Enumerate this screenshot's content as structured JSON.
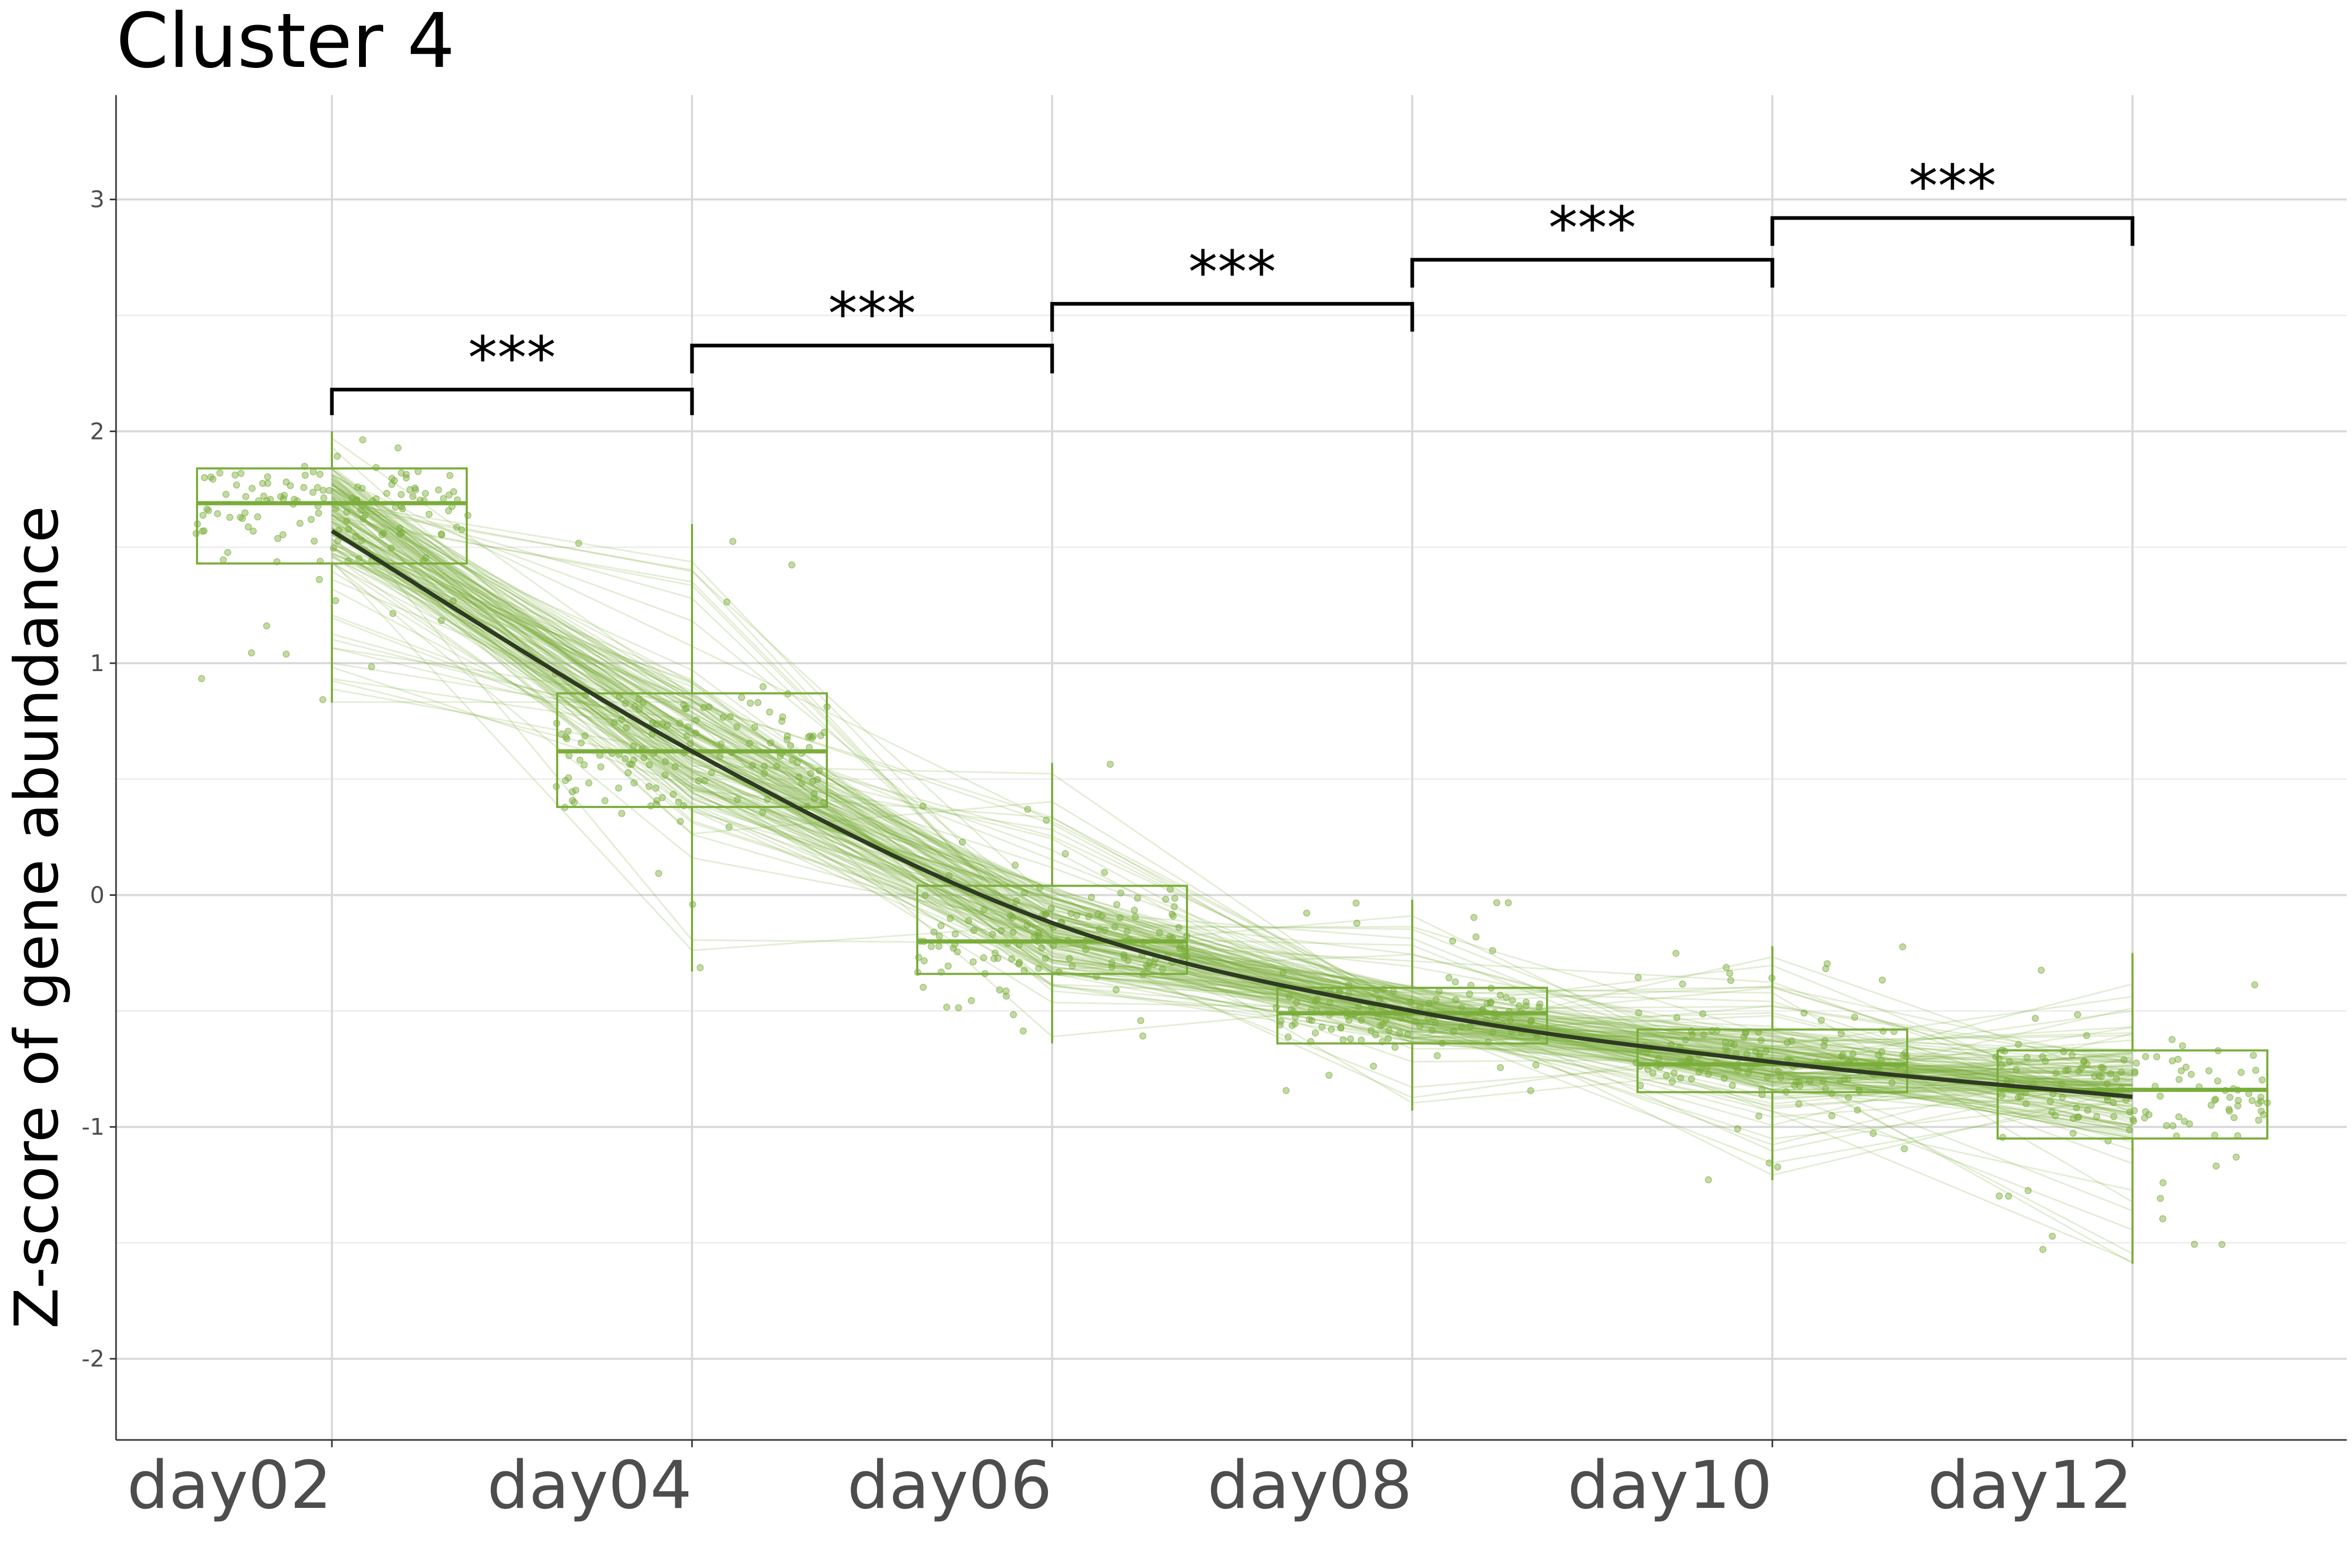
{
  "chart_data": {
    "type": "box",
    "title": "Cluster 4",
    "xlabel": "",
    "ylabel": "Z-score of gene abundance",
    "categories": [
      "day02",
      "day04",
      "day06",
      "day08",
      "day10",
      "day12"
    ],
    "ylim": [
      -2.35,
      3.45
    ],
    "yticks": [
      -2,
      -1,
      0,
      1,
      2,
      3
    ],
    "ytick_labels": [
      "-2",
      "-1",
      "0",
      "1",
      "2",
      "3"
    ],
    "grid": true,
    "series_color": "#7aad3a",
    "trend_color": "#2e3a22",
    "boxes": [
      {
        "category": "day02",
        "whisker_low": 0.83,
        "q1": 1.43,
        "median": 1.69,
        "q3": 1.84,
        "whisker_high": 2.0
      },
      {
        "category": "day04",
        "whisker_low": -0.33,
        "q1": 0.38,
        "median": 0.62,
        "q3": 0.87,
        "whisker_high": 1.6
      },
      {
        "category": "day06",
        "whisker_low": -0.64,
        "q1": -0.34,
        "median": -0.2,
        "q3": 0.04,
        "whisker_high": 0.57
      },
      {
        "category": "day08",
        "whisker_low": -0.93,
        "q1": -0.64,
        "median": -0.51,
        "q3": -0.4,
        "whisker_high": -0.02
      },
      {
        "category": "day10",
        "whisker_low": -1.23,
        "q1": -0.85,
        "median": -0.73,
        "q3": -0.58,
        "whisker_high": -0.22
      },
      {
        "category": "day12",
        "whisker_low": -1.59,
        "q1": -1.05,
        "median": -0.84,
        "q3": -0.67,
        "whisker_high": -0.25
      }
    ],
    "trend": [
      {
        "x": "day02",
        "y": 1.57
      },
      {
        "x": "day04",
        "y": 0.62
      },
      {
        "x": "day06",
        "y": -0.12
      },
      {
        "x": "day08",
        "y": -0.5
      },
      {
        "x": "day10",
        "y": -0.72
      },
      {
        "x": "day12",
        "y": -0.87
      }
    ],
    "comparisons": [
      {
        "from": "day02",
        "to": "day04",
        "label": "***",
        "y": 2.18,
        "tip_y": 2.07
      },
      {
        "from": "day04",
        "to": "day06",
        "label": "***",
        "y": 2.37,
        "tip_y": 2.25
      },
      {
        "from": "day06",
        "to": "day08",
        "label": "***",
        "y": 2.55,
        "tip_y": 2.43
      },
      {
        "from": "day08",
        "to": "day10",
        "label": "***",
        "y": 2.74,
        "tip_y": 2.62
      },
      {
        "from": "day10",
        "to": "day12",
        "label": "***",
        "y": 2.92,
        "tip_y": 2.8
      }
    ]
  }
}
